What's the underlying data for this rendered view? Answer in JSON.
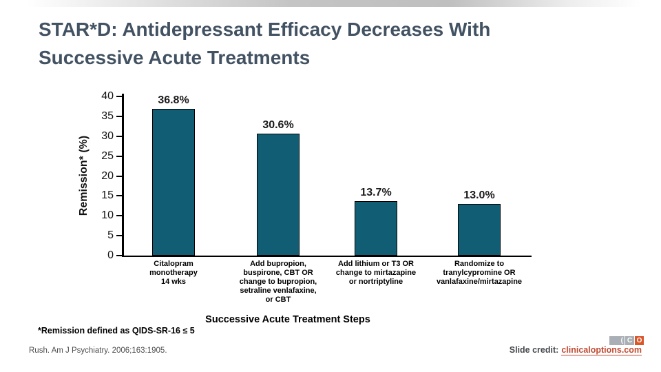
{
  "slide": {
    "title_line1": "STAR*D: Antidepressant Efficacy Decreases With",
    "title_line2": "Successive Acute Treatments",
    "footnote": "*Remission defined as QIDS-SR-16 ≤ 5",
    "reference": "Rush. Am J Psychiatry. 2006;163:1905."
  },
  "chart_data": {
    "type": "bar",
    "title": "",
    "ylabel": "Remission* (%)",
    "xlabel": "Successive Acute Treatment Steps",
    "ylim": [
      0,
      40
    ],
    "grid": false,
    "legend": false,
    "bar_color": "#115e74",
    "ytick_labels": [
      "40",
      "35",
      "30",
      "25",
      "20",
      "15",
      "10",
      "5",
      "0"
    ],
    "categories": [
      "Citalopram monotherapy 14 wks",
      "Add bupropion, buspirone, CBT OR change to bupropion, setraline venlafaxine, or CBT",
      "Add lithium or T3 OR change to mirtazapine or nortriptyline",
      "Randomize to tranylcypromine OR vanlafaxine/mirtazapine"
    ],
    "category_lines": [
      [
        "Citalopram",
        "monotherapy",
        "14 wks"
      ],
      [
        "Add bupropion,",
        "buspirone, CBT OR",
        "change to bupropion,",
        "setraline venlafaxine,",
        "or CBT"
      ],
      [
        "Add lithium or T3 OR",
        "change to mirtazapine",
        "or nortriptyline"
      ],
      [
        "Randomize to",
        "tranylcypromine OR",
        "vanlafaxine/mirtazapine"
      ]
    ],
    "values": [
      36.8,
      30.6,
      13.7,
      13.0
    ],
    "value_labels": [
      "36.8%",
      "30.6%",
      "13.7%",
      "13.0%"
    ]
  },
  "footer": {
    "credit_label": "Slide credit:",
    "credit_link": "clinicaloptions.com",
    "logo_letters": [
      "(",
      "C",
      "O"
    ]
  },
  "colors": {
    "title_text": "#425262",
    "bar_fill": "#115e74",
    "credit_link": "#c04a31",
    "logo_gray": "#a9afb5",
    "logo_orange": "#d9552a",
    "topbar_gray": "#bfbfbf"
  }
}
